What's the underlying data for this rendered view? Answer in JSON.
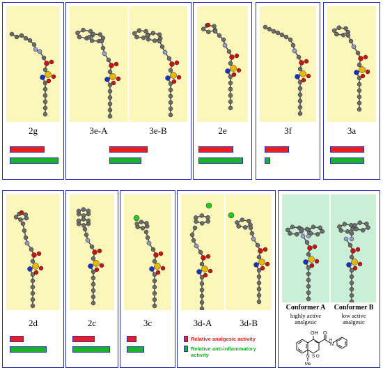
{
  "colors": {
    "panel_border": "#2430b8",
    "molecule_bg": "#fbf7ba",
    "conformer_bg": "#c9f0d6",
    "analgesic_bar": "#ee1c1c",
    "antiinflammatory_bar": "#1bb326",
    "legend_antiinflammatory_text": "#1bb326",
    "legend_analgesic_text": "#ee1c1c"
  },
  "panels": [
    {
      "labels": [
        "2g"
      ],
      "analgesic": 0.72,
      "antiinflammatory": 1.0
    },
    {
      "labels": [
        "3e-A",
        "3e-B"
      ],
      "analgesic": 0.78,
      "antiinflammatory": 0.66
    },
    {
      "labels": [
        "2e"
      ],
      "analgesic": 0.72,
      "antiinflammatory": 0.92
    },
    {
      "labels": [
        "3f"
      ],
      "analgesic": 0.5,
      "antiinflammatory": 0.12
    },
    {
      "labels": [
        "3a"
      ],
      "analgesic": 0.7,
      "antiinflammatory": 0.7
    },
    {
      "labels": [
        "2d"
      ],
      "analgesic": 0.28,
      "antiinflammatory": 0.76
    },
    {
      "labels": [
        "2c"
      ],
      "analgesic": 0.45,
      "antiinflammatory": 0.77
    },
    {
      "labels": [
        "3c"
      ],
      "analgesic": 0.2,
      "antiinflammatory": 0.35
    },
    {
      "labels": [
        "3d-A",
        "3d-B"
      ]
    }
  ],
  "legend": {
    "analgesic": "Relative  analgesic activity",
    "antiinflammatory_line1": "Relative  anti-inflammatory",
    "antiinflammatory_line2": "activity"
  },
  "conformers": {
    "a_title": "Conformer A",
    "a_sub1": "highly active",
    "a_sub2": "analgesic",
    "b_title": "Conformer B",
    "b_sub1": "low active",
    "b_sub2": "analgesic"
  },
  "structure_labels": {
    "oh": "OH",
    "o": "O",
    "h": "H",
    "n": "N",
    "s": "S",
    "me": "Me",
    "o2": "O"
  }
}
